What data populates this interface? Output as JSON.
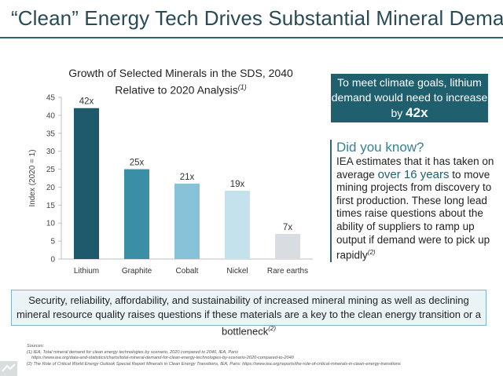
{
  "slide": {
    "title": "“Clean” Energy Tech Drives Substantial Mineral Demand"
  },
  "chart_data": {
    "type": "bar",
    "title": "Growth of Selected Minerals in the SDS, 2040",
    "title_line2": "Relative to 2020 Analysis",
    "title_footnote": "(1)",
    "ylabel": "Index (2020 = 1)",
    "xlabel": "",
    "ylim": [
      0,
      45
    ],
    "yticks": [
      0,
      5,
      10,
      15,
      20,
      25,
      30,
      35,
      40,
      45
    ],
    "categories": [
      "Lithium",
      "Graphite",
      "Cobalt",
      "Nickel",
      "Rare earths"
    ],
    "values": [
      42,
      25,
      21,
      19,
      7
    ],
    "data_labels": [
      "42x",
      "25x",
      "21x",
      "19x",
      "7x"
    ],
    "bar_colors": [
      "#1d5a6b",
      "#3a8fa6",
      "#86c3d8",
      "#c3e2ec",
      "#d9dde2"
    ],
    "grid": false
  },
  "callout": {
    "text": "To meet climate goals, lithium demand would need to increase by",
    "highlight": "42x"
  },
  "did_you_know": {
    "heading": "Did you know?",
    "text_before": "IEA estimates that it has taken on average",
    "highlight": "over 16 years",
    "text_after": "to move mining projects from discovery to first production. These long lead times raise questions about the ability of suppliers to ramp up output if demand were to pick up rapidly",
    "footnote": "(2)"
  },
  "bottom_note": {
    "text": "Security, reliability, affordability, and sustainability of increased mineral mining as well as declining mineral resource quality raises questions if these materials are a key to the clean energy transition or a bottleneck",
    "footnote": "(2)"
  },
  "sources": {
    "label": "Sources:",
    "line1": "(1) IEA, Total mineral demand for clean energy technologies by scenario, 2020 compared to 2040, IEA, Paris",
    "line2": "https://www.iea.org/data-and-statistics/charts/total-mineral-demand-for-clean-energy-technologies-by-scenario-2020-compared-to-2040",
    "line3": "(2) The Role of Critical World Energy Outlook Special Report Minerals in Clean Energy Transitions, IEA, Paris: https://www.iea.org/reports/the-role-of-critical-minerals-in-clean-energy-transitions"
  },
  "colors": {
    "accent": "#1f5f6e",
    "title": "#2a4a56",
    "highlight": "#3a7f8f",
    "box_bg": "#eaf4f7"
  }
}
